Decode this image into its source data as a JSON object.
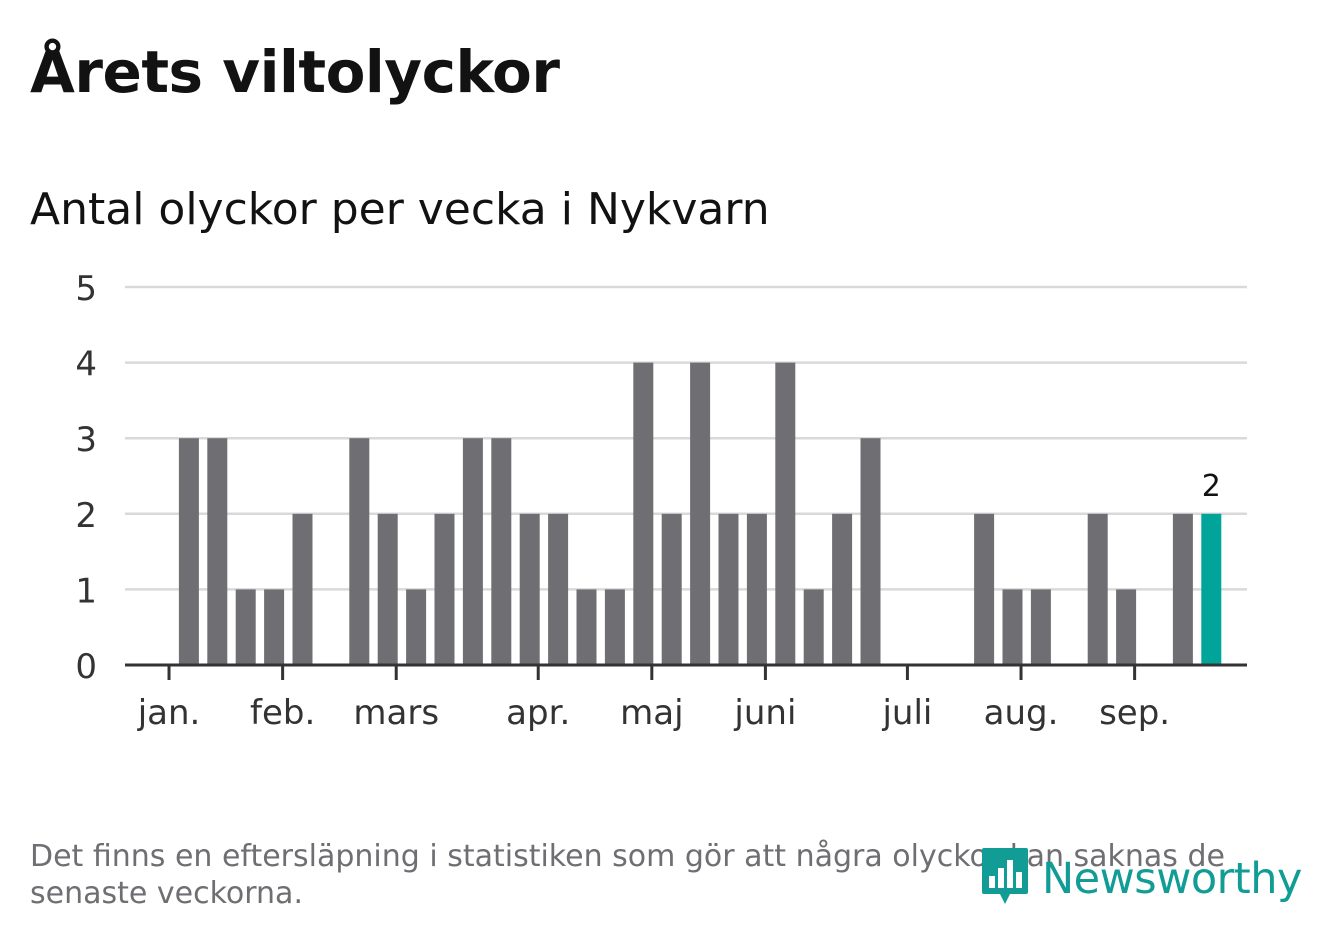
{
  "title": "Årets viltolyckor",
  "subtitle": "Antal olyckor per vecka i Nykvarn",
  "footnote": "Det finns en eftersläpning i statistiken som gör att några olyckor kan saknas de senaste veckorna.",
  "logo": {
    "text": "Newsworthy",
    "icon": "newsworthy-bar-chart-icon",
    "color": "#119c96"
  },
  "colors": {
    "bar": "#6f6e73",
    "highlight": "#00a499",
    "grid": "#d9d9d9",
    "axis": "#333333"
  },
  "chart_data": {
    "type": "bar",
    "title": "Årets viltolyckor",
    "subtitle": "Antal olyckor per vecka i Nykvarn",
    "xlabel": "",
    "ylabel": "",
    "ylim": [
      0,
      5
    ],
    "yticks": [
      0,
      1,
      2,
      3,
      4,
      5
    ],
    "grid": true,
    "x": [
      1,
      2,
      3,
      4,
      5,
      6,
      7,
      8,
      9,
      10,
      11,
      12,
      13,
      14,
      15,
      16,
      17,
      18,
      19,
      20,
      21,
      22,
      23,
      24,
      25,
      26,
      27,
      28,
      29,
      30,
      31,
      32,
      33,
      34,
      35,
      36,
      37,
      38,
      39,
      40,
      41
    ],
    "values": [
      0,
      3,
      3,
      1,
      1,
      2,
      0,
      3,
      2,
      1,
      2,
      3,
      3,
      2,
      2,
      1,
      1,
      4,
      2,
      4,
      2,
      2,
      4,
      1,
      2,
      3,
      0,
      0,
      0,
      2,
      1,
      1,
      0,
      2,
      1,
      0,
      2,
      2,
      0,
      0,
      0
    ],
    "highlight_index": 37,
    "highlight_label": "2",
    "month_ticks": [
      {
        "label": "jan.",
        "week": 1.3
      },
      {
        "label": "feb.",
        "week": 5.3
      },
      {
        "label": "mars",
        "week": 9.3
      },
      {
        "label": "apr.",
        "week": 14.3
      },
      {
        "label": "maj",
        "week": 18.3
      },
      {
        "label": "juni",
        "week": 22.3
      },
      {
        "label": "juli",
        "week": 27.3
      },
      {
        "label": "aug.",
        "week": 31.3
      },
      {
        "label": "sep.",
        "week": 35.3
      }
    ]
  }
}
